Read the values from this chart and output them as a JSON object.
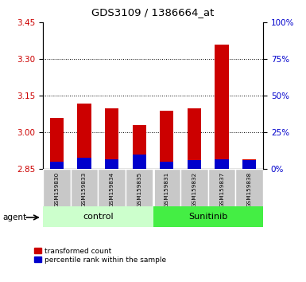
{
  "title": "GDS3109 / 1386664_at",
  "samples": [
    "GSM159830",
    "GSM159833",
    "GSM159834",
    "GSM159835",
    "GSM159831",
    "GSM159832",
    "GSM159837",
    "GSM159838"
  ],
  "groups": [
    "control",
    "control",
    "control",
    "control",
    "Sunitinib",
    "Sunitinib",
    "Sunitinib",
    "Sunitinib"
  ],
  "transformed_count": [
    3.06,
    3.12,
    3.1,
    3.03,
    3.09,
    3.1,
    3.36,
    2.89
  ],
  "percentile_rank": [
    5,
    8,
    7,
    10,
    5,
    6,
    7,
    6
  ],
  "ymin": 2.85,
  "ymax": 3.45,
  "y2min": 0,
  "y2max": 100,
  "yticks": [
    2.85,
    3.0,
    3.15,
    3.3,
    3.45
  ],
  "y2ticks": [
    0,
    25,
    50,
    75,
    100
  ],
  "gridlines": [
    3.0,
    3.15,
    3.3
  ],
  "bar_bottom": 2.85,
  "red_color": "#cc0000",
  "blue_color": "#0000cc",
  "control_bg": "#ccffcc",
  "sunitinib_bg": "#44ee44",
  "sample_bg": "#c8c8c8",
  "agent_label": "agent",
  "legend_items": [
    "transformed count",
    "percentile rank within the sample"
  ],
  "group_labels": [
    "control",
    "Sunitinib"
  ],
  "left_axis_color": "#cc0000",
  "right_axis_color": "#0000cc",
  "bar_width": 0.5
}
